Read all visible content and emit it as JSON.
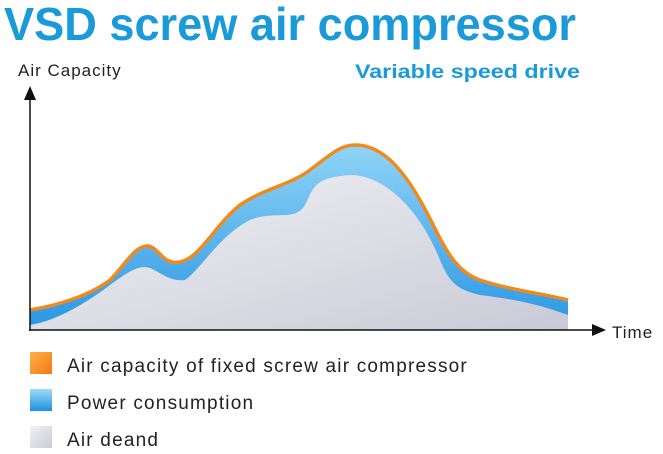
{
  "header": {
    "title": "VSD screw air compressor",
    "subtitle": "Variable speed drive"
  },
  "axes": {
    "y_label": "Air Capacity",
    "x_label": "Time"
  },
  "legend": {
    "items": [
      {
        "label": "Air capacity of fixed screw air compressor"
      },
      {
        "label": "Power consumption"
      },
      {
        "label": "Air deand"
      }
    ]
  }
}
